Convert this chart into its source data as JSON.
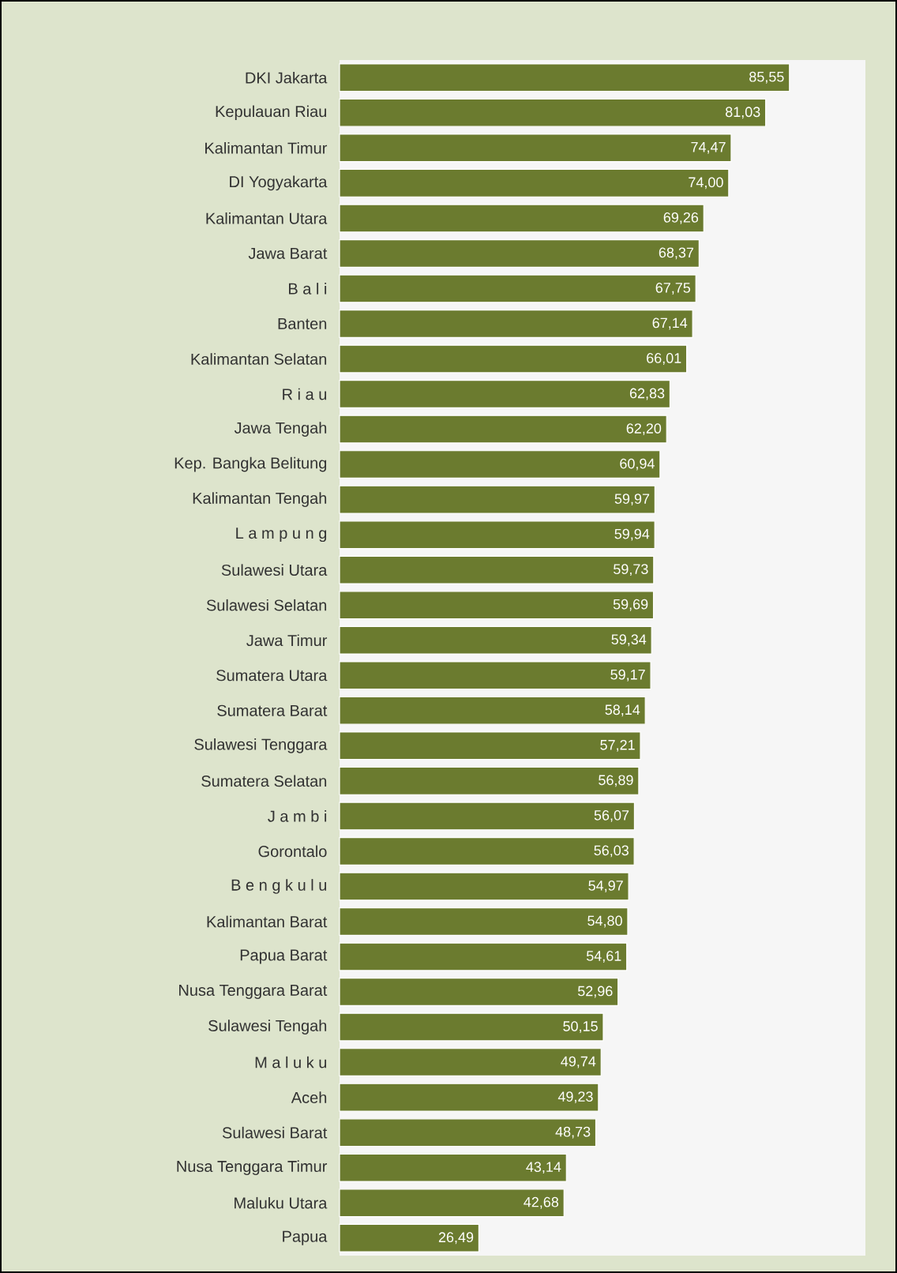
{
  "chart_data": {
    "type": "bar",
    "orientation": "horizontal",
    "categories": [
      "DKI Jakarta",
      "Kepulauan Riau",
      "Kalimantan Timur",
      "DI Yogyakarta",
      "Kalimantan Utara",
      "Jawa Barat",
      "B a l i",
      "Banten",
      "Kalimantan Selatan",
      "R i a u",
      "Jawa Tengah",
      "Kep. Bangka Belitung",
      "Kalimantan Tengah",
      "L a m p u n g",
      "Sulawesi Utara",
      "Sulawesi Selatan",
      "Jawa Timur",
      "Sumatera Utara",
      "Sumatera Barat",
      "Sulawesi Tenggara",
      "Sumatera Selatan",
      "J a m b i",
      "Gorontalo",
      "B e n g k u l u",
      "Kalimantan Barat",
      "Papua Barat",
      "Nusa Tenggara Barat",
      "Sulawesi Tengah",
      "M a l u k u",
      "Aceh",
      "Sulawesi Barat",
      "Nusa Tenggara Timur",
      "Maluku Utara",
      "Papua"
    ],
    "values": [
      85.55,
      81.03,
      74.47,
      74.0,
      69.26,
      68.37,
      67.75,
      67.14,
      66.01,
      62.83,
      62.2,
      60.94,
      59.97,
      59.94,
      59.73,
      59.69,
      59.34,
      59.17,
      58.14,
      57.21,
      56.89,
      56.07,
      56.03,
      54.97,
      54.8,
      54.61,
      52.96,
      50.15,
      49.74,
      49.23,
      48.73,
      43.14,
      42.68,
      26.49
    ],
    "value_labels": [
      "85,55",
      "81,03",
      "74,47",
      "74,00",
      "69,26",
      "68,37",
      "67,75",
      "67,14",
      "66,01",
      "62,83",
      "62,20",
      "60,94",
      "59,97",
      "59,94",
      "59,73",
      "59,69",
      "59,34",
      "59,17",
      "58,14",
      "57,21",
      "56,89",
      "56,07",
      "56,03",
      "54,97",
      "54,80",
      "54,61",
      "52,96",
      "50,15",
      "49,74",
      "49,23",
      "48,73",
      "43,14",
      "42,68",
      "26,49"
    ],
    "color": "#6b7b2f",
    "xlim": [
      0,
      100
    ]
  }
}
